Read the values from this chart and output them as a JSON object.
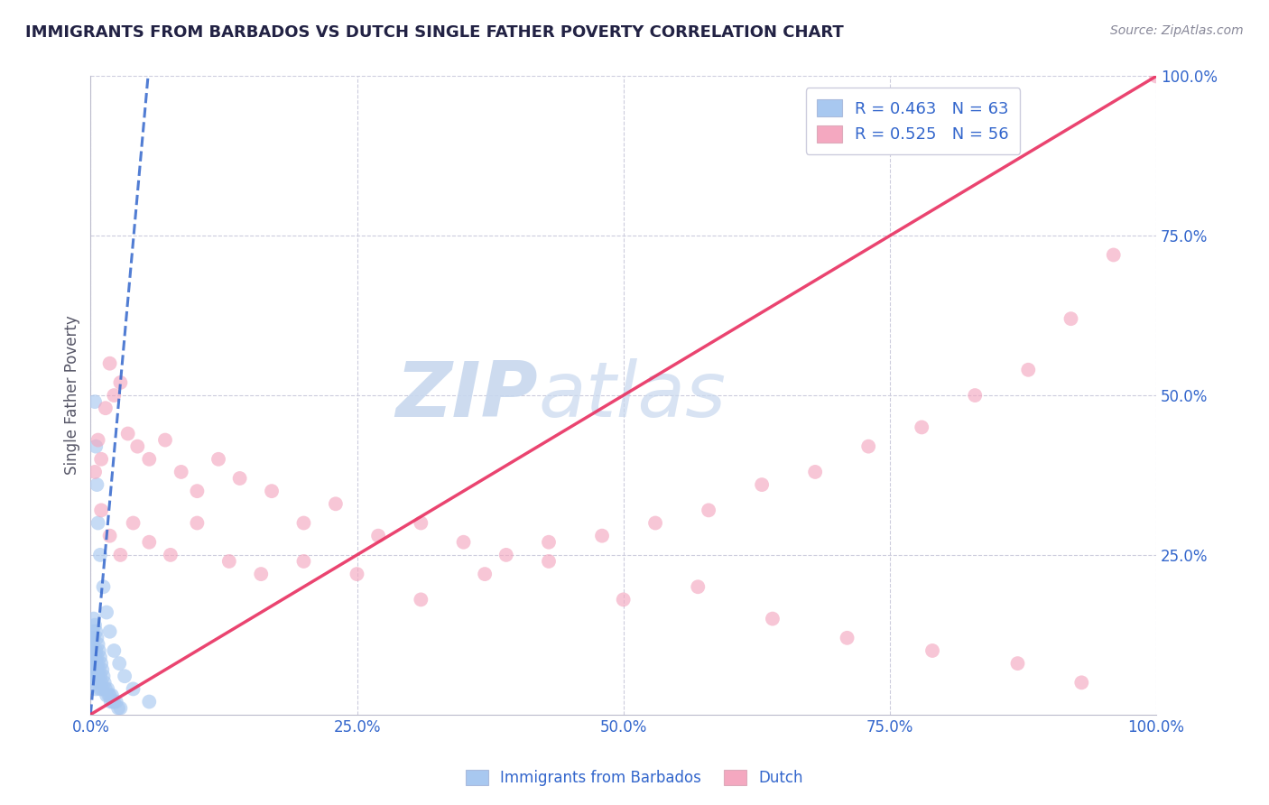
{
  "title": "IMMIGRANTS FROM BARBADOS VS DUTCH SINGLE FATHER POVERTY CORRELATION CHART",
  "source": "Source: ZipAtlas.com",
  "ylabel": "Single Father Poverty",
  "xlim": [
    0,
    1.0
  ],
  "ylim": [
    0,
    1.0
  ],
  "xtick_labels": [
    "0.0%",
    "25.0%",
    "50.0%",
    "75.0%",
    "100.0%"
  ],
  "xtick_vals": [
    0.0,
    0.25,
    0.5,
    0.75,
    1.0
  ],
  "ytick_labels": [
    "25.0%",
    "50.0%",
    "75.0%",
    "100.0%"
  ],
  "ytick_vals": [
    0.25,
    0.5,
    0.75,
    1.0
  ],
  "legend_labels": [
    "Immigrants from Barbados",
    "Dutch"
  ],
  "blue_R": 0.463,
  "blue_N": 63,
  "pink_R": 0.525,
  "pink_N": 56,
  "blue_color": "#A8C8F0",
  "pink_color": "#F4A8C0",
  "blue_line_color": "#3366CC",
  "pink_line_color": "#E83060",
  "grid_color": "#CCCCDD",
  "title_color": "#222244",
  "legend_text_color": "#3366CC",
  "watermark_color": "#C8D8EE",
  "background_color": "#FFFFFF",
  "blue_scatter_x": [
    0.001,
    0.001,
    0.001,
    0.002,
    0.002,
    0.002,
    0.002,
    0.003,
    0.003,
    0.003,
    0.003,
    0.003,
    0.004,
    0.004,
    0.004,
    0.004,
    0.005,
    0.005,
    0.005,
    0.005,
    0.005,
    0.006,
    0.006,
    0.006,
    0.007,
    0.007,
    0.007,
    0.008,
    0.008,
    0.009,
    0.009,
    0.009,
    0.01,
    0.01,
    0.011,
    0.011,
    0.012,
    0.013,
    0.014,
    0.015,
    0.016,
    0.017,
    0.018,
    0.019,
    0.02,
    0.021,
    0.022,
    0.024,
    0.026,
    0.028,
    0.004,
    0.005,
    0.006,
    0.007,
    0.009,
    0.012,
    0.015,
    0.018,
    0.022,
    0.027,
    0.032,
    0.04,
    0.055
  ],
  "blue_scatter_y": [
    0.1,
    0.12,
    0.08,
    0.13,
    0.09,
    0.11,
    0.07,
    0.15,
    0.1,
    0.08,
    0.06,
    0.12,
    0.14,
    0.09,
    0.07,
    0.05,
    0.13,
    0.1,
    0.08,
    0.06,
    0.04,
    0.12,
    0.09,
    0.07,
    0.11,
    0.08,
    0.06,
    0.1,
    0.07,
    0.09,
    0.06,
    0.04,
    0.08,
    0.05,
    0.07,
    0.04,
    0.06,
    0.05,
    0.04,
    0.03,
    0.04,
    0.03,
    0.03,
    0.02,
    0.03,
    0.02,
    0.02,
    0.02,
    0.01,
    0.01,
    0.49,
    0.42,
    0.36,
    0.3,
    0.25,
    0.2,
    0.16,
    0.13,
    0.1,
    0.08,
    0.06,
    0.04,
    0.02
  ],
  "pink_scatter_x": [
    0.004,
    0.007,
    0.01,
    0.014,
    0.018,
    0.022,
    0.028,
    0.035,
    0.044,
    0.055,
    0.07,
    0.085,
    0.1,
    0.12,
    0.14,
    0.17,
    0.2,
    0.23,
    0.27,
    0.31,
    0.35,
    0.39,
    0.43,
    0.48,
    0.53,
    0.58,
    0.63,
    0.68,
    0.73,
    0.78,
    0.83,
    0.88,
    0.92,
    0.96,
    1.0,
    0.01,
    0.018,
    0.028,
    0.04,
    0.055,
    0.075,
    0.1,
    0.13,
    0.16,
    0.2,
    0.25,
    0.31,
    0.37,
    0.43,
    0.5,
    0.57,
    0.64,
    0.71,
    0.79,
    0.87,
    0.93
  ],
  "pink_scatter_y": [
    0.38,
    0.43,
    0.4,
    0.48,
    0.55,
    0.5,
    0.52,
    0.44,
    0.42,
    0.4,
    0.43,
    0.38,
    0.35,
    0.4,
    0.37,
    0.35,
    0.3,
    0.33,
    0.28,
    0.3,
    0.27,
    0.25,
    0.27,
    0.28,
    0.3,
    0.32,
    0.36,
    0.38,
    0.42,
    0.45,
    0.5,
    0.54,
    0.62,
    0.72,
    1.0,
    0.32,
    0.28,
    0.25,
    0.3,
    0.27,
    0.25,
    0.3,
    0.24,
    0.22,
    0.24,
    0.22,
    0.18,
    0.22,
    0.24,
    0.18,
    0.2,
    0.15,
    0.12,
    0.1,
    0.08,
    0.05
  ],
  "blue_line_x0": 0.0,
  "blue_line_y0": 0.0,
  "blue_line_x1": 0.055,
  "blue_line_y1": 1.02,
  "pink_line_x0": 0.0,
  "pink_line_y0": 0.0,
  "pink_line_x1": 1.0,
  "pink_line_y1": 1.0
}
